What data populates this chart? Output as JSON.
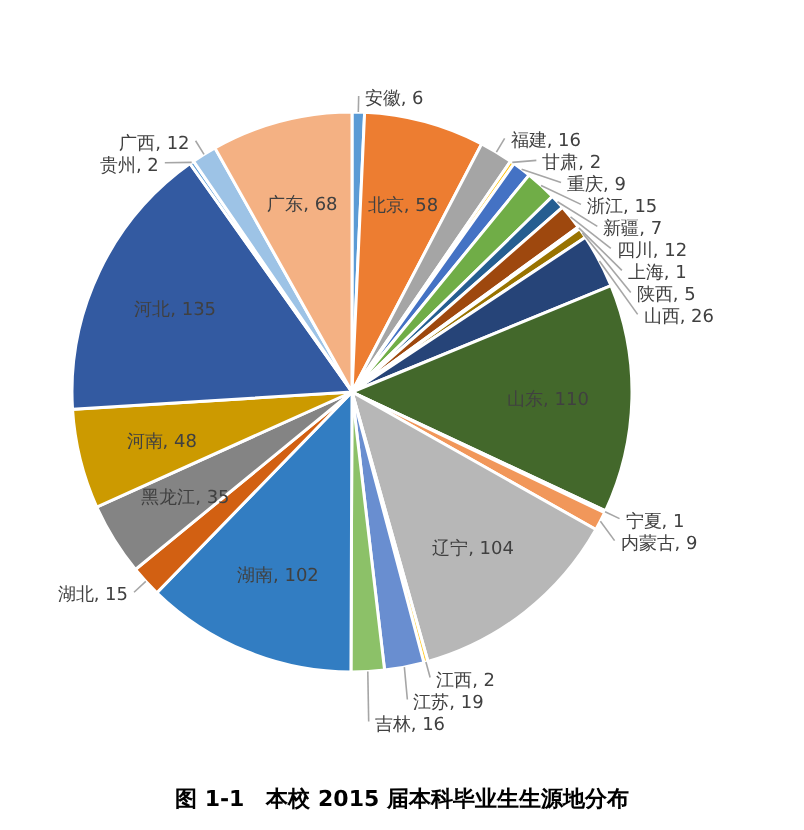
{
  "chart_data": {
    "type": "pie",
    "title": "图 1-1　本校 2015 届本科毕业生生源地分布",
    "categories": [
      "安徽",
      "北京",
      "福建",
      "甘肃",
      "重庆",
      "浙江",
      "新疆",
      "四川",
      "上海",
      "陕西",
      "山西",
      "山东",
      "宁夏",
      "内蒙古",
      "辽宁",
      "江西",
      "江苏",
      "吉林",
      "湖南",
      "湖北",
      "黑龙江",
      "河南",
      "河北",
      "贵州",
      "广西",
      "广东"
    ],
    "values": [
      6,
      58,
      16,
      2,
      9,
      15,
      7,
      12,
      1,
      5,
      26,
      110,
      1,
      9,
      104,
      2,
      19,
      16,
      102,
      15,
      35,
      48,
      135,
      2,
      12,
      68
    ],
    "colors": [
      "#5b9bd5",
      "#ed7d31",
      "#a5a5a5",
      "#ffc000",
      "#4472c4",
      "#70ad47",
      "#255e91",
      "#9e480e",
      "#636363",
      "#997300",
      "#264478",
      "#43682b",
      "#7cafdd",
      "#f1975a",
      "#b7b7b7",
      "#ffcd33",
      "#698ed0",
      "#8cc168",
      "#327dc2",
      "#d26012",
      "#848484",
      "#cc9a00",
      "#335aa1",
      "#5b9bd5",
      "#9dc3e6",
      "#f4b183"
    ],
    "value_labels": [
      ", 6",
      ", 58",
      ", 16",
      ", 2",
      ", 9",
      ", 15",
      ", 7",
      ", 12",
      ", 1",
      ", 5",
      ", 26",
      ", 110",
      ", 1",
      ", 9",
      ", 104",
      ", 2",
      ", 19",
      ", 16",
      ", 102",
      ", 15",
      ", 35",
      ", 48",
      ", 135",
      ", 2",
      ", 12",
      ", 68"
    ]
  }
}
